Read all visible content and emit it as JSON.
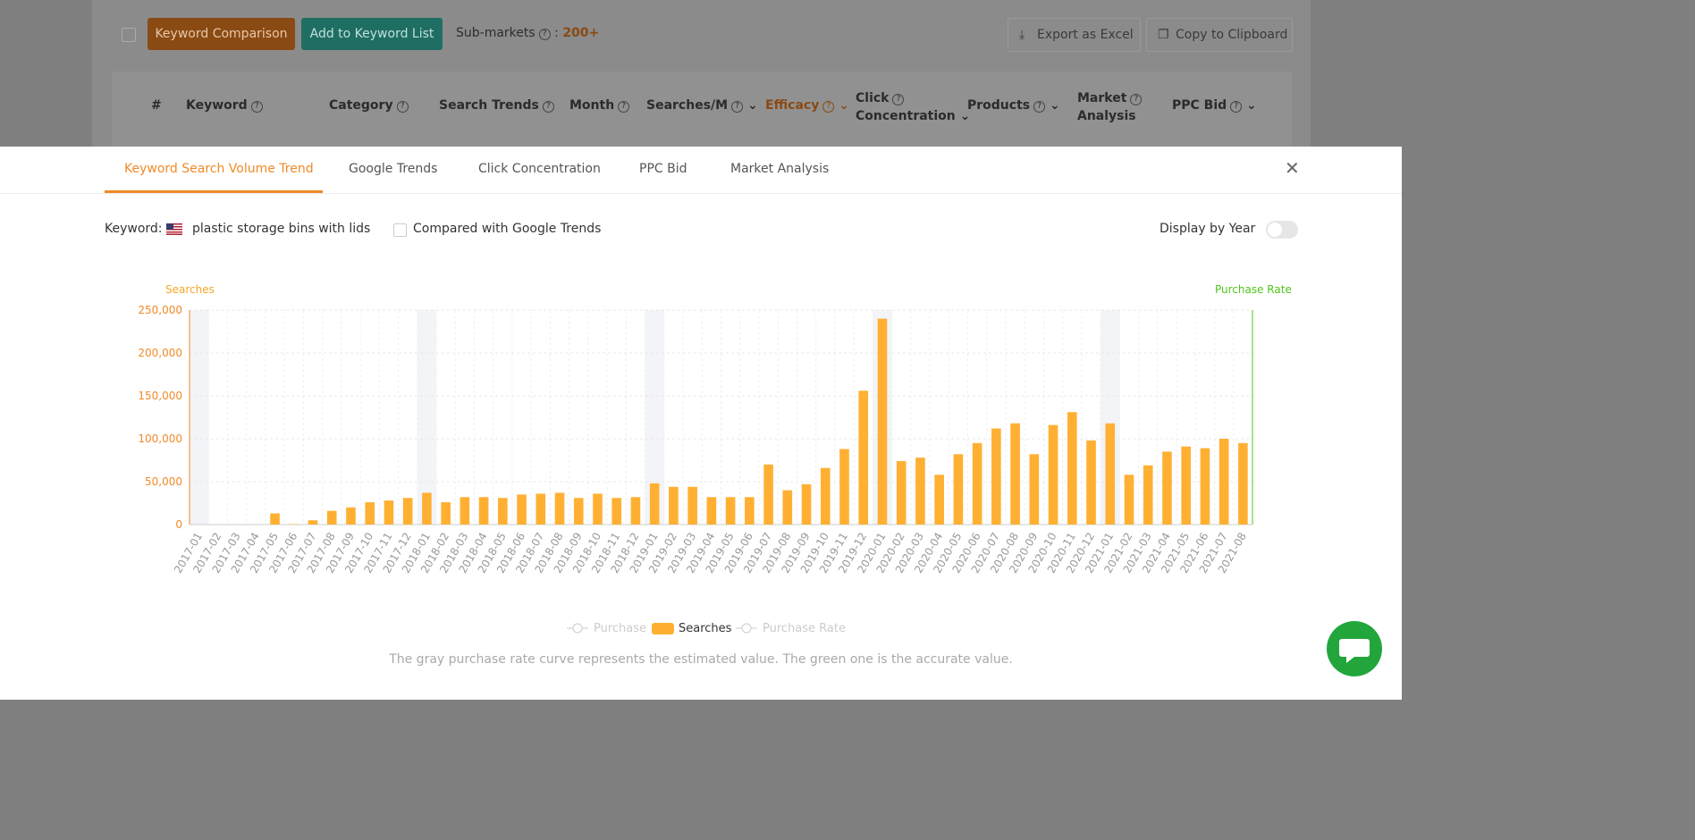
{
  "toolbar": {
    "compare_label": "Keyword Comparison",
    "add_label": "Add to Keyword List",
    "submarkets_label": "Sub-markets",
    "submarkets_value": "200+",
    "export_label": "Export as Excel",
    "copy_label": "Copy to Clipboard"
  },
  "table_header": {
    "index": "#",
    "keyword": "Keyword",
    "category": "Category",
    "search_trends": "Search Trends",
    "month": "Month",
    "searches_m": "Searches/M",
    "efficacy": "Efficacy",
    "click_concentration_1": "Click",
    "click_concentration_2": "Concentration",
    "products": "Products",
    "market_analysis_1": "Market",
    "market_analysis_2": "Analysis",
    "ppc_bid": "PPC Bid"
  },
  "modal": {
    "tabs": [
      {
        "label": "Keyword Search Volume Trend"
      },
      {
        "label": "Google Trends"
      },
      {
        "label": "Click Concentration"
      },
      {
        "label": "PPC Bid"
      },
      {
        "label": "Market Analysis"
      }
    ],
    "keyword_label": "Keyword:",
    "keyword_value": "plastic storage bins with lids",
    "compare_google": "Compared with Google Trends",
    "display_by_year": "Display by Year",
    "left_axis": "Searches",
    "right_axis": "Purchase Rate",
    "note": "The gray purchase rate curve represents the estimated value. The green one is the accurate value."
  },
  "colors": {
    "accent": "#f18a27",
    "bar": "#ffb033",
    "green": "#52c41a"
  },
  "chart_data": {
    "type": "bar",
    "title": "",
    "ylabel": "Searches",
    "y2label": "Purchase Rate",
    "ylim": [
      0,
      250000
    ],
    "yticks": [
      "250,000",
      "200,000",
      "150,000",
      "100,000",
      "50,000",
      "0"
    ],
    "categories": [
      "2017-01",
      "2017-02",
      "2017-03",
      "2017-04",
      "2017-05",
      "2017-06",
      "2017-07",
      "2017-08",
      "2017-09",
      "2017-10",
      "2017-11",
      "2017-12",
      "2018-01",
      "2018-02",
      "2018-03",
      "2018-04",
      "2018-05",
      "2018-06",
      "2018-07",
      "2018-08",
      "2018-09",
      "2018-10",
      "2018-11",
      "2018-12",
      "2019-01",
      "2019-02",
      "2019-03",
      "2019-04",
      "2019-05",
      "2019-06",
      "2019-07",
      "2019-08",
      "2019-09",
      "2019-10",
      "2019-11",
      "2019-12",
      "2020-01",
      "2020-02",
      "2020-03",
      "2020-04",
      "2020-05",
      "2020-06",
      "2020-07",
      "2020-08",
      "2020-09",
      "2020-10",
      "2020-11",
      "2020-12",
      "2021-01",
      "2021-02",
      "2021-03",
      "2021-04",
      "2021-05",
      "2021-06",
      "2021-07",
      "2021-08"
    ],
    "series": [
      {
        "name": "Searches",
        "values": [
          0,
          0,
          0,
          0,
          13000,
          500,
          5000,
          16000,
          20000,
          26000,
          28000,
          31000,
          37000,
          26000,
          32000,
          32000,
          31000,
          35000,
          36000,
          37000,
          31000,
          36000,
          31000,
          32000,
          48000,
          44000,
          44000,
          32000,
          32000,
          32000,
          70000,
          40000,
          47000,
          66000,
          88000,
          156000,
          240000,
          74000,
          78000,
          58000,
          82000,
          95000,
          112000,
          118000,
          82000,
          116000,
          131000,
          98000,
          118000,
          58000,
          69000,
          85000,
          91000,
          89000,
          100000,
          95000
        ]
      }
    ],
    "legend": [
      {
        "label": "Purchase"
      },
      {
        "label": "Searches"
      },
      {
        "label": "Purchase Rate"
      }
    ],
    "legend_position": "bottom-center"
  }
}
